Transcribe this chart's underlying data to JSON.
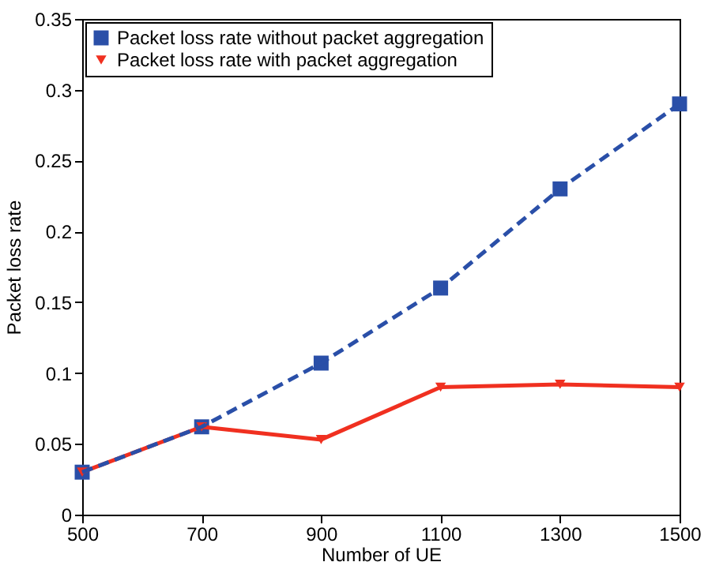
{
  "chart_data": {
    "type": "line",
    "xlabel": "Number of UE",
    "ylabel": "Packet loss rate",
    "x": [
      500,
      700,
      900,
      1100,
      1300,
      1500
    ],
    "series": [
      {
        "name": "Packet loss rate without packet aggregation",
        "color": "#2a4fa8",
        "values": [
          0.03,
          0.062,
          0.107,
          0.16,
          0.23,
          0.29
        ],
        "marker": "square",
        "line_style": "dashed"
      },
      {
        "name": "Packet loss rate with packet aggregation",
        "color": "#f03020",
        "values": [
          0.03,
          0.062,
          0.053,
          0.09,
          0.092,
          0.09
        ],
        "marker": "triangle",
        "line_style": "solid"
      }
    ],
    "xlim": [
      500,
      1500
    ],
    "xticks": [
      500,
      700,
      900,
      1100,
      1300,
      1500
    ],
    "ylim": [
      0,
      0.35
    ],
    "yticks": [
      0,
      0.05,
      0.1,
      0.15,
      0.2,
      0.25,
      0.3,
      0.35
    ],
    "grid": false,
    "legend": "top left"
  }
}
